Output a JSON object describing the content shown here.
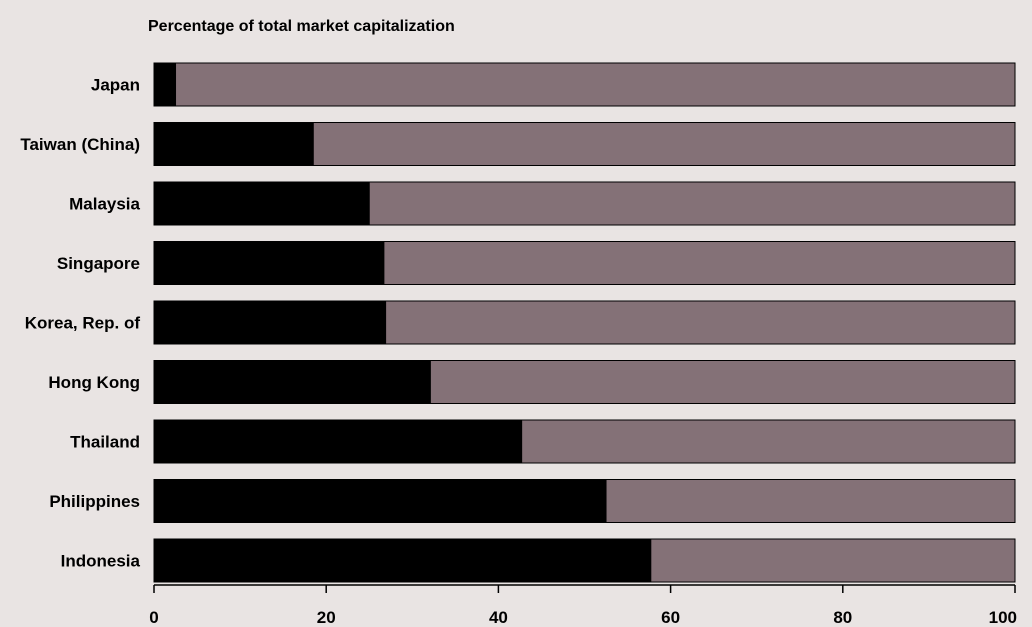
{
  "chart_data": {
    "type": "bar",
    "orientation": "horizontal",
    "stacked": true,
    "title": "Percentage of total market capitalization",
    "xlabel": "",
    "ylabel": "",
    "xlim": [
      0,
      100
    ],
    "x_ticks": [
      0,
      20,
      40,
      60,
      80,
      100
    ],
    "grid": false,
    "legend": "none",
    "categories": [
      "Japan",
      "Taiwan (China)",
      "Malaysia",
      "Singapore",
      "Korea, Rep. of",
      "Hong Kong",
      "Thailand",
      "Philippines",
      "Indonesia"
    ],
    "series": [
      {
        "color": "#000000",
        "values": [
          2.5,
          18.5,
          25,
          26.7,
          26.9,
          32.1,
          42.7,
          52.5,
          57.7
        ]
      },
      {
        "color": "#847177",
        "values": [
          97.5,
          81.5,
          75,
          73.3,
          73.1,
          67.9,
          57.3,
          47.5,
          42.3
        ]
      }
    ]
  }
}
